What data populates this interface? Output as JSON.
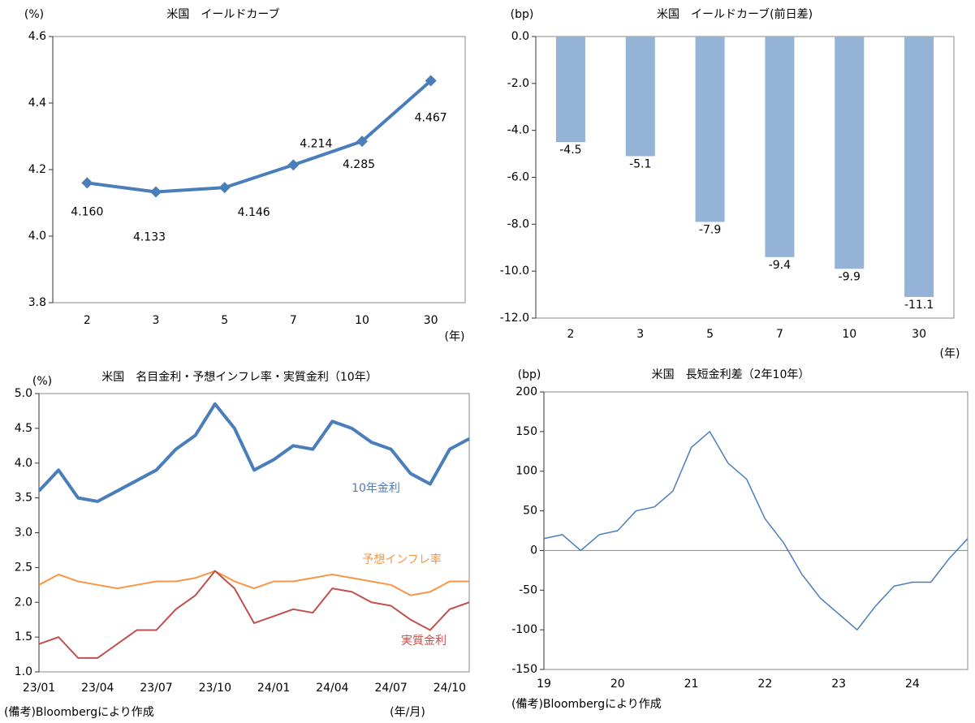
{
  "chart_data": [
    {
      "type": "line",
      "title": "米国　イールドカーブ",
      "y_unit": "(%)",
      "x_unit": "(年)",
      "categories": [
        "2",
        "3",
        "5",
        "7",
        "10",
        "30"
      ],
      "series": [
        {
          "name": null,
          "color": "#4a7ebb",
          "values": [
            4.16,
            4.133,
            4.146,
            4.214,
            4.285,
            4.467
          ],
          "value_labels": [
            "4.160",
            "4.133",
            "4.146",
            "4.214",
            "4.285",
            "4.467"
          ]
        }
      ],
      "ylim": [
        3.8,
        4.6
      ],
      "yticks": [
        3.8,
        {
          "value": 4,
          "label": "4.0"
        },
        4.2,
        4.4,
        4.6
      ],
      "markers": true
    },
    {
      "type": "bar",
      "title": "米国　イールドカーブ(前日差)",
      "y_unit": "(bp)",
      "x_unit": "(年)",
      "categories": [
        "2",
        "3",
        "5",
        "7",
        "10",
        "30"
      ],
      "series": [
        {
          "name": null,
          "color": "#95b3d7",
          "values": [
            -4.5,
            -5.1,
            -7.9,
            -9.4,
            -9.9,
            -11.1
          ]
        }
      ],
      "ylim": [
        -12,
        0
      ],
      "yticks": [
        {
          "value": 0,
          "label": "0.0"
        },
        {
          "value": -2,
          "label": "-2.0"
        },
        {
          "value": -4,
          "label": "-4.0"
        },
        {
          "value": -6,
          "label": "-6.0"
        },
        {
          "value": -8,
          "label": "-8.0"
        },
        {
          "value": -10,
          "label": "-10.0"
        },
        {
          "value": -12,
          "label": "-12.0"
        }
      ]
    },
    {
      "type": "line",
      "title": "米国　名目金利・予想インフレ率・実質金利（10年）",
      "y_unit": "(%)",
      "x_unit": "(年/月)",
      "footnote": "(備考)Bloombergにより作成",
      "categories": [
        "23/01",
        null,
        null,
        "23/04",
        null,
        null,
        "23/07",
        null,
        null,
        "23/10",
        null,
        null,
        "24/01",
        null,
        null,
        "24/04",
        null,
        null,
        "24/07",
        null,
        null,
        "24/10",
        null
      ],
      "series": [
        {
          "name": "10年金利",
          "color": "#4a7ebb",
          "values": [
            3.6,
            3.9,
            3.5,
            3.45,
            3.6,
            3.75,
            3.9,
            4.2,
            4.4,
            4.85,
            4.5,
            3.9,
            4.05,
            4.25,
            4.2,
            4.6,
            4.5,
            4.3,
            4.2,
            3.85,
            3.7,
            4.2,
            4.35
          ]
        },
        {
          "name": "予想インフレ率",
          "color": "#f79646",
          "values": [
            2.25,
            2.4,
            2.3,
            2.25,
            2.2,
            2.25,
            2.3,
            2.3,
            2.35,
            2.45,
            2.3,
            2.2,
            2.3,
            2.3,
            2.35,
            2.4,
            2.35,
            2.3,
            2.25,
            2.1,
            2.15,
            2.3,
            2.3
          ]
        },
        {
          "name": "実質金利",
          "color": "#c0504d",
          "values": [
            1.4,
            1.5,
            1.2,
            1.2,
            1.4,
            1.6,
            1.6,
            1.9,
            2.1,
            2.45,
            2.2,
            1.7,
            1.8,
            1.9,
            1.85,
            2.2,
            2.15,
            2.0,
            1.95,
            1.75,
            1.6,
            1.9,
            2.0
          ]
        }
      ],
      "ylim": [
        1,
        5
      ],
      "yticks": [
        {
          "value": 1,
          "label": "1.0"
        },
        1.5,
        {
          "value": 2,
          "label": "2.0"
        },
        2.5,
        {
          "value": 3,
          "label": "3.0"
        },
        3.5,
        {
          "value": 4,
          "label": "4.0"
        },
        4.5,
        {
          "value": 5,
          "label": "5.0"
        }
      ]
    },
    {
      "type": "line",
      "title": "米国　長短金利差（2年10年）",
      "y_unit": "(bp)",
      "footnote": "(備考)Bloombergにより作成",
      "categories": [
        "19",
        null,
        null,
        null,
        "20",
        null,
        null,
        null,
        "21",
        null,
        null,
        null,
        "22",
        null,
        null,
        null,
        "23",
        null,
        null,
        null,
        "24",
        null,
        null,
        null
      ],
      "series": [
        {
          "name": null,
          "color": "#4a7ebb",
          "values": [
            15,
            20,
            0,
            20,
            25,
            50,
            55,
            75,
            130,
            150,
            110,
            90,
            40,
            10,
            -30,
            -60,
            -80,
            -100,
            -70,
            -45,
            -40,
            -40,
            -10,
            15
          ]
        }
      ],
      "ylim": [
        -150,
        200
      ],
      "yticks": [
        -150,
        -100,
        -50,
        0,
        50,
        100,
        150,
        200
      ],
      "zero_line": true
    }
  ]
}
